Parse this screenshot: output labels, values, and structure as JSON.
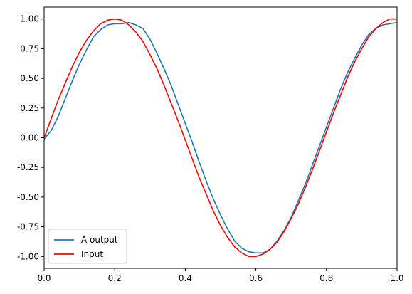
{
  "chart_data": {
    "type": "line",
    "title": "",
    "xlabel": "",
    "ylabel": "",
    "xlim": [
      0.0,
      1.0
    ],
    "ylim": [
      -1.1,
      1.1
    ],
    "grid": false,
    "legend_position": "lower-left",
    "x_ticks": [
      "0.0",
      "0.2",
      "0.4",
      "0.6",
      "0.8",
      "1.0"
    ],
    "y_ticks": [
      "-1.00",
      "-0.75",
      "-0.50",
      "-0.25",
      "0.00",
      "0.25",
      "0.50",
      "0.75",
      "1.00"
    ],
    "series": [
      {
        "name": "A output",
        "color": "#1f77b4",
        "x": [
          0.0,
          0.02,
          0.04,
          0.06,
          0.08,
          0.1,
          0.12,
          0.14,
          0.16,
          0.18,
          0.2,
          0.22,
          0.24,
          0.26,
          0.28,
          0.3,
          0.32,
          0.34,
          0.36,
          0.38,
          0.4,
          0.42,
          0.44,
          0.46,
          0.48,
          0.5,
          0.52,
          0.54,
          0.56,
          0.58,
          0.6,
          0.62,
          0.64,
          0.66,
          0.68,
          0.7,
          0.72,
          0.74,
          0.76,
          0.78,
          0.8,
          0.82,
          0.84,
          0.86,
          0.88,
          0.9,
          0.92,
          0.94,
          0.96,
          0.98,
          1.0
        ],
        "y": [
          -0.01,
          0.06,
          0.18,
          0.33,
          0.48,
          0.62,
          0.74,
          0.85,
          0.91,
          0.95,
          0.96,
          0.96,
          0.97,
          0.95,
          0.92,
          0.83,
          0.71,
          0.58,
          0.44,
          0.28,
          0.12,
          -0.04,
          -0.21,
          -0.37,
          -0.52,
          -0.65,
          -0.77,
          -0.87,
          -0.93,
          -0.96,
          -0.97,
          -0.97,
          -0.94,
          -0.87,
          -0.78,
          -0.67,
          -0.53,
          -0.39,
          -0.23,
          -0.07,
          0.09,
          0.25,
          0.41,
          0.55,
          0.67,
          0.78,
          0.87,
          0.92,
          0.95,
          0.96,
          0.97
        ]
      },
      {
        "name": "Input",
        "color": "#ff0000",
        "x": [
          0.0,
          0.02,
          0.04,
          0.06,
          0.08,
          0.1,
          0.12,
          0.14,
          0.16,
          0.18,
          0.2,
          0.22,
          0.24,
          0.26,
          0.28,
          0.3,
          0.32,
          0.34,
          0.36,
          0.38,
          0.4,
          0.42,
          0.44,
          0.46,
          0.48,
          0.5,
          0.52,
          0.54,
          0.56,
          0.58,
          0.6,
          0.62,
          0.64,
          0.66,
          0.68,
          0.7,
          0.72,
          0.74,
          0.76,
          0.78,
          0.8,
          0.82,
          0.84,
          0.86,
          0.88,
          0.9,
          0.92,
          0.94,
          0.96,
          0.98,
          1.0
        ],
        "y": [
          0.0,
          0.16,
          0.32,
          0.46,
          0.6,
          0.72,
          0.82,
          0.9,
          0.96,
          0.99,
          1.0,
          0.99,
          0.95,
          0.89,
          0.81,
          0.7,
          0.58,
          0.44,
          0.29,
          0.14,
          -0.02,
          -0.18,
          -0.34,
          -0.48,
          -0.62,
          -0.74,
          -0.84,
          -0.92,
          -0.97,
          -1.0,
          -1.0,
          -0.98,
          -0.94,
          -0.88,
          -0.79,
          -0.68,
          -0.56,
          -0.42,
          -0.27,
          -0.11,
          0.05,
          0.21,
          0.36,
          0.51,
          0.64,
          0.75,
          0.85,
          0.92,
          0.97,
          1.0,
          1.0
        ]
      }
    ]
  }
}
